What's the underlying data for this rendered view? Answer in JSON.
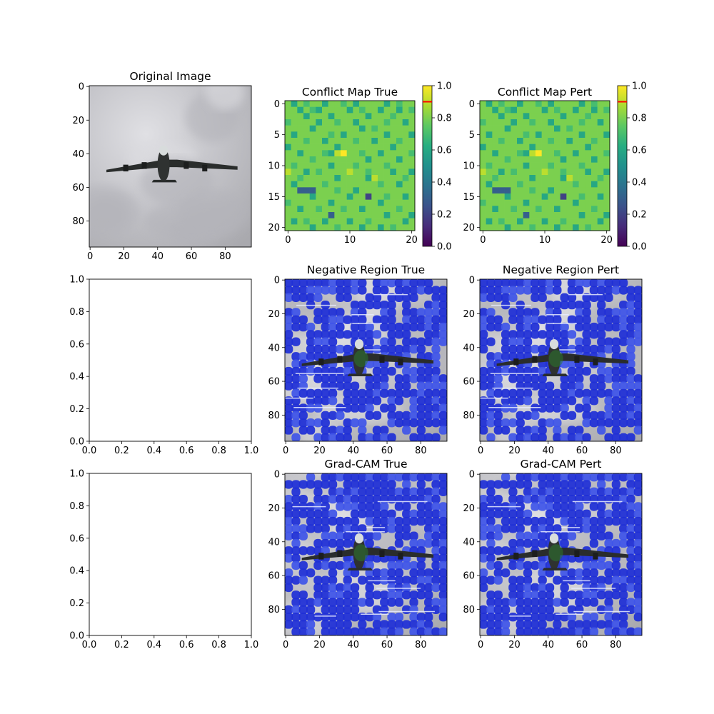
{
  "colors": {
    "viridis": [
      "#440154",
      "#472c7a",
      "#3b528b",
      "#2c728e",
      "#21908d",
      "#27ad81",
      "#5cc863",
      "#aadc32",
      "#fde725"
    ],
    "overlay_blue": "#1f2fd6",
    "overlay_blue_light": "#3f55e8",
    "background_grey": "#c8c8cc",
    "colorbar_marker": "#ff0000"
  },
  "chart_data": [
    {
      "type": "heatmap",
      "image": "grayscale photo of airplane in cloudy sky",
      "title": "Original Image",
      "xlim": [
        0,
        96
      ],
      "ylim": [
        96,
        0
      ],
      "xticks": [
        "0",
        "20",
        "40",
        "60",
        "80"
      ],
      "yticks": [
        "0",
        "20",
        "40",
        "60",
        "80"
      ]
    },
    {
      "type": "heatmap",
      "title": "Conflict Map True",
      "grid_size": [
        21,
        21
      ],
      "colormap": "viridis",
      "xticks": [
        "0",
        "10",
        "20"
      ],
      "yticks": [
        "0",
        "5",
        "10",
        "15",
        "20"
      ],
      "colorbar": {
        "range": [
          0,
          1
        ],
        "ticks": [
          "0.0",
          "0.2",
          "0.4",
          "0.6",
          "0.8",
          "1.0"
        ],
        "marker": 0.9
      },
      "dominant_value": 0.8,
      "rows": [
        [
          0.8,
          0.6,
          0.8,
          0.7,
          0.8,
          0.8,
          0.6,
          0.8,
          0.8,
          0.7,
          0.8,
          0.6,
          0.8,
          0.8,
          0.8,
          0.8,
          0.6,
          0.8,
          0.7,
          0.8,
          0.8
        ],
        [
          0.8,
          0.8,
          0.6,
          0.8,
          0.7,
          0.6,
          0.8,
          0.8,
          0.8,
          0.8,
          0.6,
          0.8,
          0.7,
          0.8,
          0.8,
          0.6,
          0.8,
          0.8,
          0.6,
          0.8,
          0.7
        ],
        [
          0.8,
          0.8,
          0.8,
          0.6,
          0.8,
          0.8,
          0.8,
          0.6,
          0.8,
          0.8,
          0.8,
          0.8,
          0.8,
          0.6,
          0.8,
          0.8,
          0.8,
          0.7,
          0.8,
          0.8,
          0.8
        ],
        [
          0.7,
          0.8,
          0.8,
          0.8,
          0.8,
          0.6,
          0.8,
          0.8,
          0.7,
          0.8,
          0.8,
          0.6,
          0.8,
          0.8,
          0.8,
          0.8,
          0.7,
          0.8,
          0.8,
          0.6,
          0.8
        ],
        [
          0.8,
          0.8,
          0.8,
          0.8,
          0.6,
          0.8,
          0.8,
          0.8,
          0.8,
          0.8,
          0.8,
          0.8,
          0.6,
          0.8,
          0.7,
          0.8,
          0.8,
          0.8,
          0.8,
          0.8,
          0.8
        ],
        [
          0.8,
          0.6,
          0.8,
          0.8,
          0.8,
          0.8,
          0.8,
          0.7,
          0.8,
          0.6,
          0.8,
          0.8,
          0.8,
          0.8,
          0.8,
          0.8,
          0.6,
          0.8,
          0.8,
          0.8,
          0.6
        ],
        [
          0.8,
          0.8,
          0.8,
          0.7,
          0.8,
          0.8,
          0.6,
          0.8,
          0.8,
          0.8,
          0.8,
          0.7,
          0.8,
          0.8,
          0.6,
          0.8,
          0.8,
          0.8,
          0.7,
          0.8,
          0.8
        ],
        [
          0.6,
          0.8,
          0.8,
          0.8,
          0.8,
          0.8,
          0.8,
          0.8,
          0.6,
          0.8,
          0.8,
          0.8,
          0.8,
          0.8,
          0.8,
          0.8,
          0.8,
          0.6,
          0.8,
          0.8,
          0.8
        ],
        [
          0.8,
          0.8,
          0.6,
          0.8,
          0.8,
          0.8,
          0.7,
          0.6,
          0.9,
          1.0,
          0.8,
          0.8,
          0.7,
          0.8,
          0.8,
          0.6,
          0.8,
          0.8,
          0.8,
          0.8,
          0.7
        ],
        [
          0.8,
          0.8,
          0.8,
          0.8,
          0.7,
          0.8,
          0.8,
          0.8,
          0.8,
          0.8,
          0.8,
          0.8,
          0.8,
          0.6,
          0.8,
          0.8,
          0.8,
          0.8,
          0.6,
          0.8,
          0.8
        ],
        [
          0.8,
          0.7,
          0.8,
          0.8,
          0.8,
          0.8,
          0.8,
          0.6,
          0.8,
          0.8,
          0.8,
          0.7,
          0.8,
          0.8,
          0.8,
          0.8,
          0.7,
          0.8,
          0.8,
          0.8,
          0.8
        ],
        [
          0.9,
          0.8,
          0.8,
          0.6,
          0.8,
          0.7,
          0.8,
          0.8,
          0.8,
          0.8,
          0.9,
          0.8,
          0.8,
          0.7,
          0.8,
          0.8,
          0.8,
          0.6,
          0.8,
          0.8,
          0.6
        ],
        [
          0.8,
          0.8,
          0.7,
          0.8,
          0.8,
          0.8,
          0.8,
          0.8,
          0.6,
          0.8,
          0.8,
          0.8,
          0.8,
          0.6,
          0.9,
          0.8,
          0.8,
          0.8,
          0.8,
          0.7,
          0.8
        ],
        [
          0.8,
          0.6,
          0.8,
          0.8,
          0.8,
          0.8,
          0.7,
          0.8,
          0.8,
          0.8,
          0.8,
          0.8,
          0.8,
          0.8,
          0.8,
          0.7,
          0.8,
          0.8,
          0.6,
          0.8,
          0.8
        ],
        [
          0.8,
          0.8,
          0.3,
          0.3,
          0.3,
          0.8,
          0.8,
          0.8,
          0.7,
          0.8,
          0.8,
          0.6,
          0.8,
          0.8,
          0.8,
          0.8,
          0.8,
          0.8,
          0.8,
          0.8,
          0.8
        ],
        [
          0.8,
          0.8,
          0.8,
          0.8,
          0.6,
          0.8,
          0.8,
          0.8,
          0.8,
          0.8,
          0.6,
          0.8,
          0.8,
          0.2,
          0.8,
          0.8,
          0.7,
          0.8,
          0.8,
          0.6,
          0.8
        ],
        [
          0.7,
          0.8,
          0.8,
          0.8,
          0.8,
          0.8,
          0.8,
          0.6,
          0.8,
          0.8,
          0.8,
          0.8,
          0.8,
          0.8,
          0.8,
          0.6,
          0.8,
          0.8,
          0.8,
          0.8,
          0.8
        ],
        [
          0.8,
          0.8,
          0.6,
          0.8,
          0.8,
          0.7,
          0.8,
          0.8,
          0.8,
          0.7,
          0.8,
          0.8,
          0.6,
          0.8,
          0.8,
          0.8,
          0.8,
          0.8,
          0.7,
          0.8,
          0.8
        ],
        [
          0.8,
          0.8,
          0.8,
          0.8,
          0.8,
          0.8,
          0.8,
          0.3,
          0.8,
          0.8,
          0.8,
          0.8,
          0.8,
          0.8,
          0.8,
          0.8,
          0.6,
          0.8,
          0.8,
          0.8,
          0.6
        ],
        [
          0.8,
          0.6,
          0.8,
          0.7,
          0.8,
          0.8,
          0.6,
          0.8,
          0.8,
          0.8,
          0.6,
          0.8,
          0.8,
          0.7,
          0.8,
          0.8,
          0.8,
          0.8,
          0.8,
          0.6,
          0.8
        ],
        [
          0.8,
          0.8,
          0.8,
          0.8,
          0.6,
          0.8,
          0.8,
          0.8,
          0.7,
          0.8,
          0.8,
          0.8,
          0.6,
          0.8,
          0.8,
          0.6,
          0.8,
          0.7,
          0.8,
          0.8,
          0.8
        ]
      ]
    },
    {
      "type": "heatmap",
      "title": "Conflict Map Pert",
      "grid_size": [
        21,
        21
      ],
      "colormap": "viridis",
      "same_as": "Conflict Map True",
      "xticks": [
        "0",
        "10",
        "20"
      ],
      "yticks": [
        "0",
        "5",
        "10",
        "15",
        "20"
      ],
      "colorbar": {
        "range": [
          0,
          1
        ],
        "ticks": [
          "0.0",
          "0.2",
          "0.4",
          "0.6",
          "0.8",
          "1.0"
        ],
        "marker": 0.9
      }
    },
    {
      "type": "scatter",
      "empty": true,
      "xlim": [
        0,
        1
      ],
      "ylim": [
        0,
        1
      ],
      "xticks": [
        "0.0",
        "0.2",
        "0.4",
        "0.6",
        "0.8",
        "1.0"
      ],
      "yticks": [
        "0.0",
        "0.2",
        "0.4",
        "0.6",
        "0.8",
        "1.0"
      ]
    },
    {
      "type": "heatmap",
      "image": "airplane photo with blue overlay",
      "title": "Negative Region True",
      "xticks": [
        "0",
        "20",
        "40",
        "60",
        "80"
      ],
      "yticks": [
        "0",
        "20",
        "40",
        "60",
        "80"
      ]
    },
    {
      "type": "heatmap",
      "image": "airplane photo with blue overlay",
      "title": "Negative Region Pert",
      "xticks": [
        "0",
        "20",
        "40",
        "60",
        "80"
      ],
      "yticks": [
        "0",
        "20",
        "40",
        "60",
        "80"
      ]
    },
    {
      "type": "scatter",
      "empty": true,
      "xlim": [
        0,
        1
      ],
      "ylim": [
        0,
        1
      ],
      "xticks": [
        "0.0",
        "0.2",
        "0.4",
        "0.6",
        "0.8",
        "1.0"
      ],
      "yticks": [
        "0.0",
        "0.2",
        "0.4",
        "0.6",
        "0.8",
        "1.0"
      ]
    },
    {
      "type": "heatmap",
      "image": "airplane photo with blue Grad-CAM overlay",
      "title": "Grad-CAM True",
      "xticks": [
        "0",
        "20",
        "40",
        "60",
        "80"
      ],
      "yticks": [
        "0",
        "20",
        "40",
        "60",
        "80"
      ]
    },
    {
      "type": "heatmap",
      "image": "airplane photo with blue Grad-CAM overlay",
      "title": "Grad-CAM Pert",
      "xticks": [
        "0",
        "20",
        "40",
        "60",
        "80"
      ],
      "yticks": [
        "0",
        "20",
        "40",
        "60",
        "80"
      ]
    }
  ]
}
